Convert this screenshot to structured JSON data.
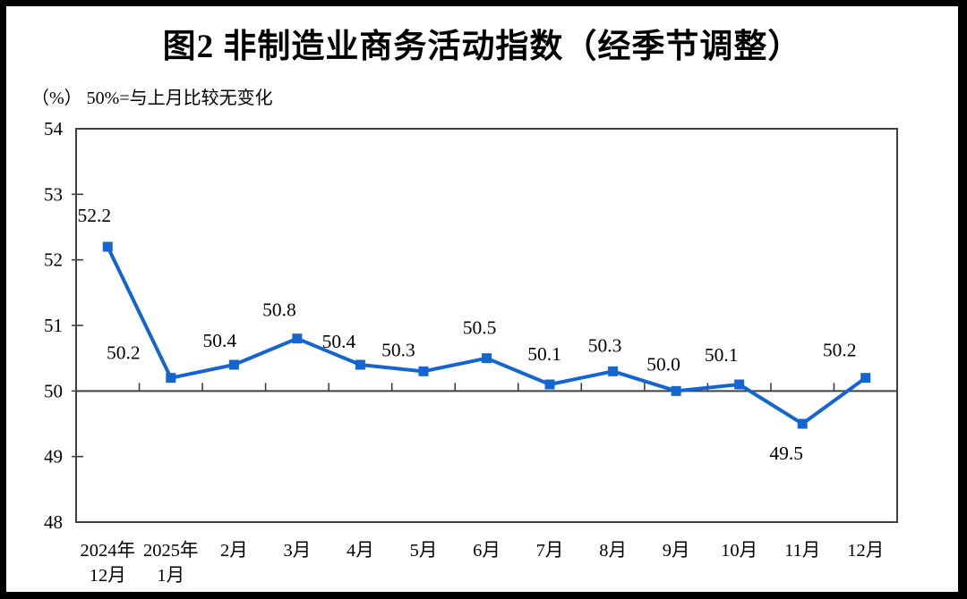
{
  "page": {
    "title": "图2 非制造业商务活动指数（经季节调整）",
    "unit_note": "（%） 50%=与上月比较无变化"
  },
  "chart_data": {
    "type": "line",
    "title": "图2 非制造业商务活动指数（经季节调整）",
    "subtitle": "（%） 50%=与上月比较无变化",
    "categories": [
      [
        "2024年",
        "12月"
      ],
      [
        "2025年",
        "1月"
      ],
      [
        "2月"
      ],
      [
        "3月"
      ],
      [
        "4月"
      ],
      [
        "5月"
      ],
      [
        "6月"
      ],
      [
        "7月"
      ],
      [
        "8月"
      ],
      [
        "9月"
      ],
      [
        "10月"
      ],
      [
        "11月"
      ],
      [
        "12月"
      ]
    ],
    "series": [
      {
        "values": [
          52.2,
          50.2,
          50.4,
          50.8,
          50.4,
          50.3,
          50.5,
          50.1,
          50.3,
          50.0,
          50.1,
          49.5,
          50.2
        ]
      }
    ],
    "data_labels": [
      "52.2",
      "50.2",
      "50.4",
      "50.8",
      "50.4",
      "50.3",
      "50.5",
      "50.1",
      "50.3",
      "50.0",
      "50.1",
      "49.5",
      "50.2"
    ],
    "y_ticks": [
      54,
      53,
      52,
      51,
      50,
      49,
      48
    ],
    "ylim": [
      48,
      54
    ],
    "reference_line": 50,
    "grid": false,
    "legend": "none",
    "marker": "square",
    "colors": {
      "series": "#1565D1",
      "axis": "#404040",
      "text": "#000000",
      "page_border": "#000000",
      "background": "#FFFFFF"
    }
  }
}
